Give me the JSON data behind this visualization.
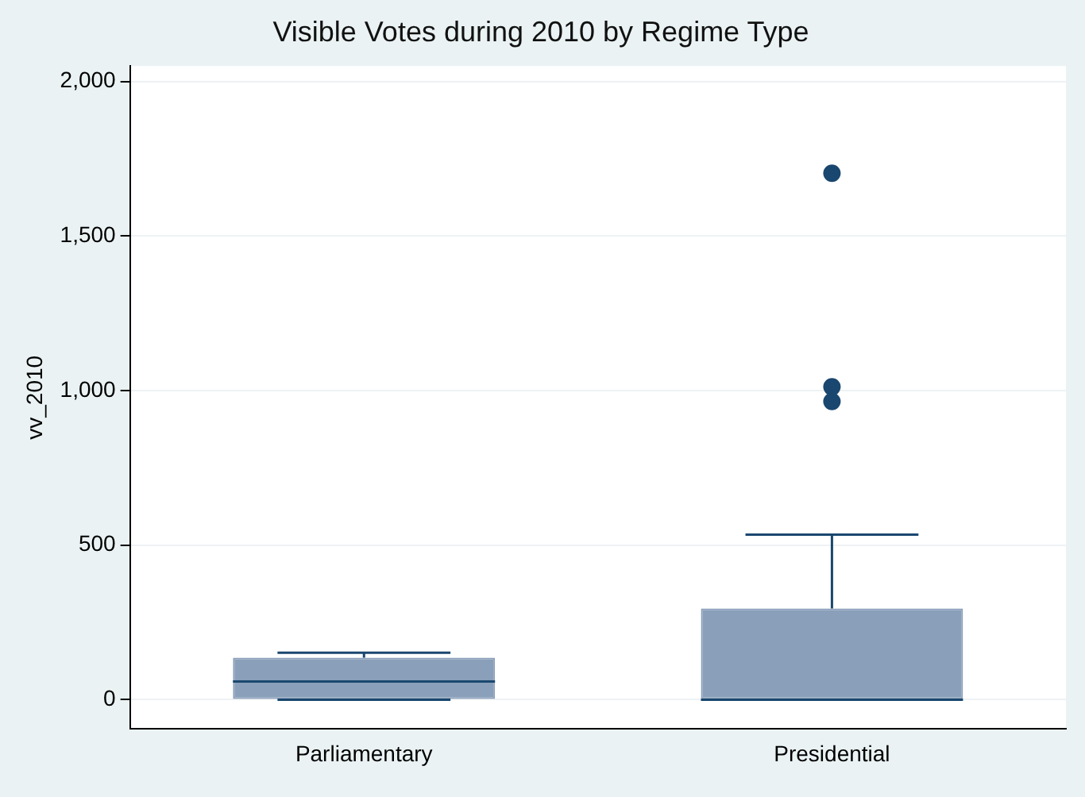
{
  "chart_data": {
    "type": "box",
    "title": "Visible Votes during 2010 by Regime Type",
    "ylabel": "vv_2010",
    "categories": [
      "Parliamentary",
      "Presidential"
    ],
    "color": "#8a9fb9",
    "boxes": [
      {
        "low": 0,
        "q1": 0,
        "median": 59,
        "q3": 136,
        "high": 152
      },
      {
        "low": 0,
        "q1": 0,
        "median": 0,
        "q3": 295,
        "high": 534,
        "outliers": [
          965,
          1012,
          1703
        ]
      }
    ],
    "ylim": [
      -95,
      2050
    ],
    "yticks": [
      0,
      500,
      {
        "value": 1000,
        "label": "1,000"
      },
      {
        "value": 1500,
        "label": "1,500"
      },
      {
        "value": 2000,
        "label": "2,000"
      }
    ],
    "grid": "y",
    "legend": false
  }
}
